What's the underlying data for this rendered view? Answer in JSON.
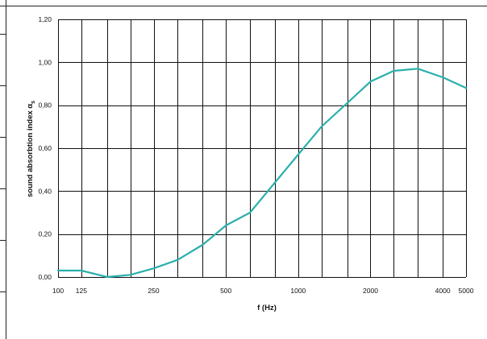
{
  "chart_data": {
    "type": "line",
    "xscale": "log",
    "xlim": [
      100,
      5000
    ],
    "ylim": [
      0,
      1.2
    ],
    "grid": true,
    "xlabel": "f (Hz)",
    "ylabel_prefix": "sound absorbtion index α",
    "ylabel_subscript": "s",
    "x_tick_labels": [
      {
        "value": 100,
        "label": "100"
      },
      {
        "value": 125,
        "label": "125"
      },
      {
        "value": 250,
        "label": "250"
      },
      {
        "value": 500,
        "label": "500"
      },
      {
        "value": 1000,
        "label": "1000"
      },
      {
        "value": 2000,
        "label": "2000"
      },
      {
        "value": 4000,
        "label": "4000"
      },
      {
        "value": 5000,
        "label": "5000"
      }
    ],
    "y_tick_labels": [
      {
        "value": 0,
        "label": "0,00"
      },
      {
        "value": 0.2,
        "label": "0,20"
      },
      {
        "value": 0.4,
        "label": "0,40"
      },
      {
        "value": 0.6,
        "label": "0,60"
      },
      {
        "value": 0.8,
        "label": "0,80"
      },
      {
        "value": 1.0,
        "label": "1,00"
      },
      {
        "value": 1.2,
        "label": "1,20"
      }
    ],
    "x_grid_values": [
      100,
      125,
      160,
      200,
      250,
      315,
      400,
      500,
      630,
      800,
      1000,
      1250,
      1600,
      2000,
      2500,
      3150,
      4000,
      5000
    ],
    "series": [
      {
        "color": "#2ab0ab",
        "x": [
          100,
          125,
          160,
          200,
          250,
          315,
          400,
          500,
          630,
          800,
          1000,
          1250,
          1600,
          2000,
          2500,
          3150,
          4000,
          5000
        ],
        "y": [
          0.03,
          0.03,
          0.0,
          0.01,
          0.04,
          0.08,
          0.15,
          0.24,
          0.3,
          0.44,
          0.57,
          0.7,
          0.81,
          0.91,
          0.96,
          0.97,
          0.93,
          0.88
        ]
      }
    ]
  }
}
